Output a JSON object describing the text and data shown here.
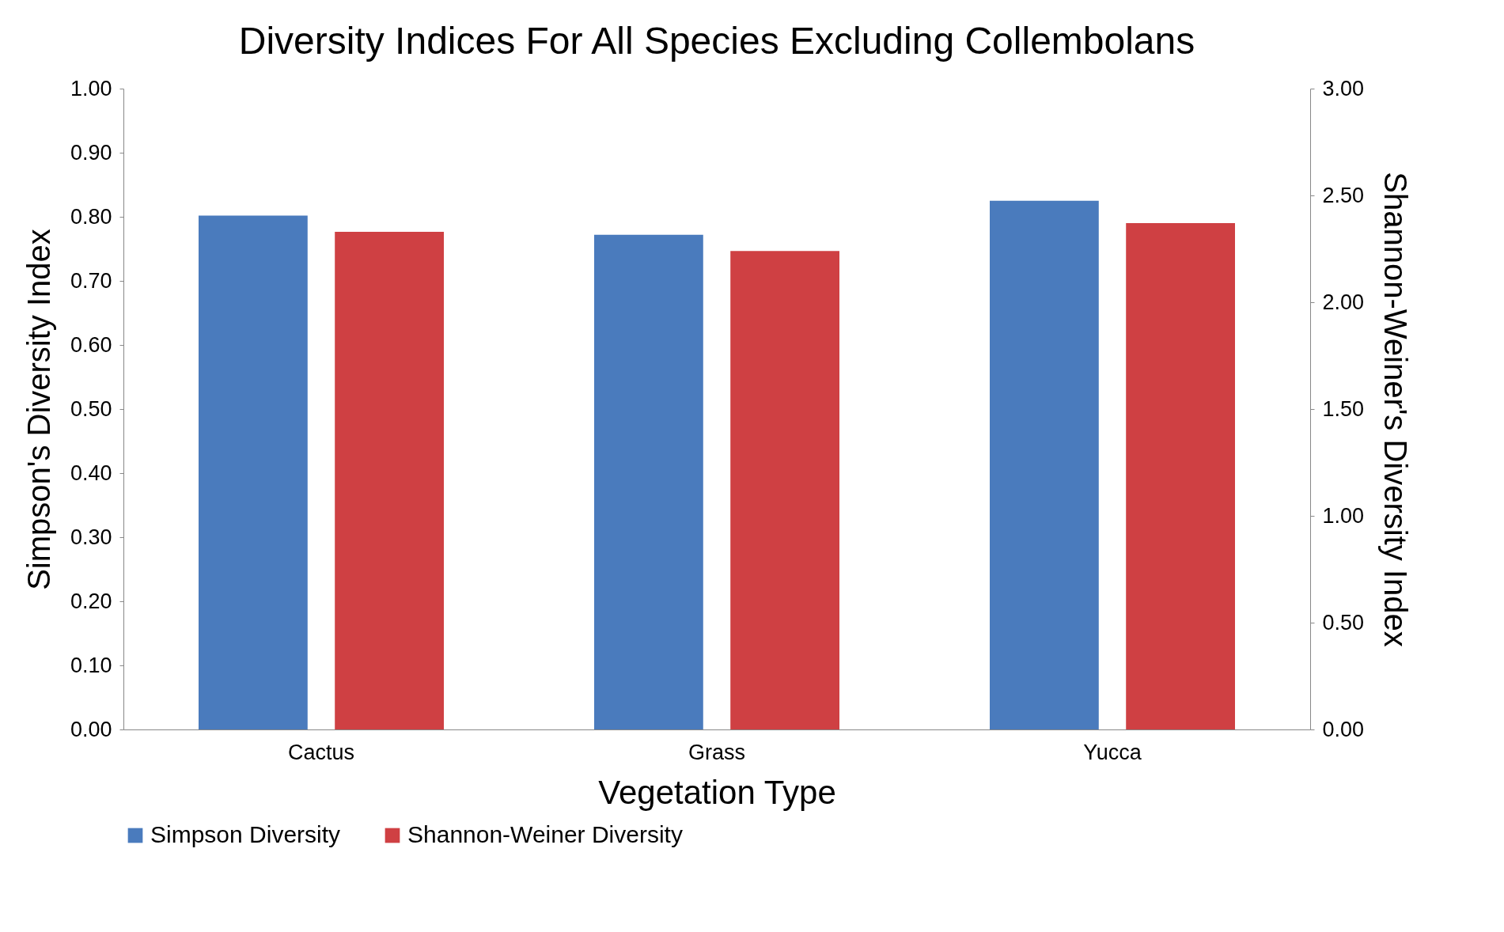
{
  "chart_data": {
    "type": "bar",
    "title": "Diversity Indices For All Species Excluding Collembolans",
    "xlabel": "Vegetation Type",
    "ylabel": "Simpson's Diversity Index",
    "y2label": "Shannon-Weiner's Diversity Index",
    "categories": [
      "Cactus",
      "Grass",
      "Yucca"
    ],
    "series": [
      {
        "name": "Simpson Diversity",
        "color": "#4a7bbd",
        "values": [
          0.802,
          0.772,
          0.825
        ]
      },
      {
        "name": "Shannon-Weiner Diversity",
        "color": "#cf4043",
        "axis": "y2",
        "values": [
          2.33,
          2.24,
          2.37
        ]
      }
    ],
    "ylim": [
      0,
      1
    ],
    "yticks": [
      {
        "value": 0,
        "label": "0.00"
      },
      {
        "value": 0.1,
        "label": "0.10"
      },
      {
        "value": 0.2,
        "label": "0.20"
      },
      {
        "value": 0.3,
        "label": "0.30"
      },
      {
        "value": 0.4,
        "label": "0.40"
      },
      {
        "value": 0.5,
        "label": "0.50"
      },
      {
        "value": 0.6,
        "label": "0.60"
      },
      {
        "value": 0.7,
        "label": "0.70"
      },
      {
        "value": 0.8,
        "label": "0.80"
      },
      {
        "value": 0.9,
        "label": "0.90"
      },
      {
        "value": 1,
        "label": "1.00"
      }
    ],
    "y2lim": [
      0,
      3
    ],
    "y2ticks": [
      {
        "value": 0,
        "label": "0.00"
      },
      {
        "value": 0.5,
        "label": "0.50"
      },
      {
        "value": 1,
        "label": "1.00"
      },
      {
        "value": 1.5,
        "label": "1.50"
      },
      {
        "value": 2,
        "label": "2.00"
      },
      {
        "value": 2.5,
        "label": "2.50"
      },
      {
        "value": 3,
        "label": "3.00"
      }
    ],
    "grid": false,
    "legend": "bottom"
  }
}
